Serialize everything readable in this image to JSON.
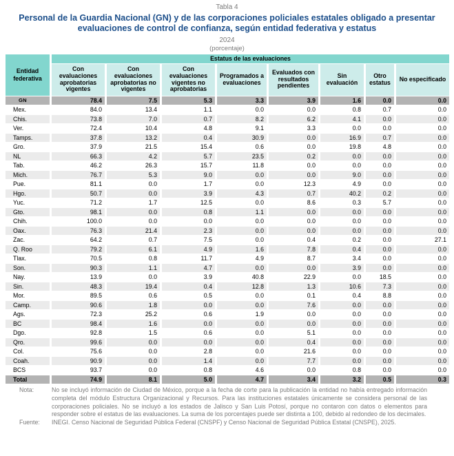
{
  "title": {
    "table_label": "Tabla 4",
    "main": "Personal de la Guardia Nacional (GN) y de las corporaciones policiales estatales obligado a presentar evaluaciones de control de confianza, según entidad federativa y estatus",
    "year": "2024",
    "unit": "(porcentaje)"
  },
  "colors": {
    "accent_teal": "#82d6ce",
    "subheader_light": "#cdecea",
    "emphasis_row_gray": "#b3b3b3",
    "stripe_gray": "#ebebeb",
    "title_blue": "#1b4e8a",
    "note_gray": "#7a7a7a"
  },
  "chart_data": {
    "type": "table",
    "title": "Personal de la Guardia Nacional (GN) y de las corporaciones policiales estatales obligado a presentar evaluaciones de control de confianza, según entidad federativa y estatus, 2024 (porcentaje)",
    "row_header": "Entidad federativa",
    "col_group_header": "Estatus de las evaluaciones",
    "columns": [
      "Con evaluaciones aprobatorias vigentes",
      "Con evaluaciones aprobatorias no vigentes",
      "Con evaluaciones vigentes no aprobatorias",
      "Programados a evaluaciones",
      "Evaluados con resultados pendientes",
      "Sin evaluación",
      "Otro estatus",
      "No especificado"
    ],
    "rows": [
      {
        "label": "GN",
        "emphasis": true,
        "values": [
          "78.4",
          "7.5",
          "5.3",
          "3.3",
          "3.9",
          "1.6",
          "0.0",
          "0.0"
        ]
      },
      {
        "label": "Mex.",
        "emphasis": false,
        "values": [
          "84.0",
          "13.4",
          "1.1",
          "0.0",
          "0.0",
          "0.8",
          "0.7",
          "0.0"
        ]
      },
      {
        "label": "Chis.",
        "emphasis": false,
        "values": [
          "73.8",
          "7.0",
          "0.7",
          "8.2",
          "6.2",
          "4.1",
          "0.0",
          "0.0"
        ]
      },
      {
        "label": "Ver.",
        "emphasis": false,
        "values": [
          "72.4",
          "10.4",
          "4.8",
          "9.1",
          "3.3",
          "0.0",
          "0.0",
          "0.0"
        ]
      },
      {
        "label": "Tamps.",
        "emphasis": false,
        "values": [
          "37.8",
          "13.2",
          "0.4",
          "30.9",
          "0.0",
          "16.9",
          "0.7",
          "0.0"
        ]
      },
      {
        "label": "Gro.",
        "emphasis": false,
        "values": [
          "37.9",
          "21.5",
          "15.4",
          "0.6",
          "0.0",
          "19.8",
          "4.8",
          "0.0"
        ]
      },
      {
        "label": "NL",
        "emphasis": false,
        "values": [
          "66.3",
          "4.2",
          "5.7",
          "23.5",
          "0.2",
          "0.0",
          "0.0",
          "0.0"
        ]
      },
      {
        "label": "Tab.",
        "emphasis": false,
        "values": [
          "46.2",
          "26.3",
          "15.7",
          "11.8",
          "0.0",
          "0.0",
          "0.0",
          "0.0"
        ]
      },
      {
        "label": "Mich.",
        "emphasis": false,
        "values": [
          "76.7",
          "5.3",
          "9.0",
          "0.0",
          "0.0",
          "9.0",
          "0.0",
          "0.0"
        ]
      },
      {
        "label": "Pue.",
        "emphasis": false,
        "values": [
          "81.1",
          "0.0",
          "1.7",
          "0.0",
          "12.3",
          "4.9",
          "0.0",
          "0.0"
        ]
      },
      {
        "label": "Hgo.",
        "emphasis": false,
        "values": [
          "50.7",
          "0.0",
          "3.9",
          "4.3",
          "0.7",
          "40.2",
          "0.2",
          "0.0"
        ]
      },
      {
        "label": "Yuc.",
        "emphasis": false,
        "values": [
          "71.2",
          "1.7",
          "12.5",
          "0.0",
          "8.6",
          "0.3",
          "5.7",
          "0.0"
        ]
      },
      {
        "label": "Gto.",
        "emphasis": false,
        "values": [
          "98.1",
          "0.0",
          "0.8",
          "1.1",
          "0.0",
          "0.0",
          "0.0",
          "0.0"
        ]
      },
      {
        "label": "Chih.",
        "emphasis": false,
        "values": [
          "100.0",
          "0.0",
          "0.0",
          "0.0",
          "0.0",
          "0.0",
          "0.0",
          "0.0"
        ]
      },
      {
        "label": "Oax.",
        "emphasis": false,
        "values": [
          "76.3",
          "21.4",
          "2.3",
          "0.0",
          "0.0",
          "0.0",
          "0.0",
          "0.0"
        ]
      },
      {
        "label": "Zac.",
        "emphasis": false,
        "values": [
          "64.2",
          "0.7",
          "7.5",
          "0.0",
          "0.4",
          "0.2",
          "0.0",
          "27.1"
        ]
      },
      {
        "label": "Q. Roo",
        "emphasis": false,
        "values": [
          "79.2",
          "6.1",
          "4.9",
          "1.6",
          "7.8",
          "0.4",
          "0.0",
          "0.0"
        ]
      },
      {
        "label": "Tlax.",
        "emphasis": false,
        "values": [
          "70.5",
          "0.8",
          "11.7",
          "4.9",
          "8.7",
          "3.4",
          "0.0",
          "0.0"
        ]
      },
      {
        "label": "Son.",
        "emphasis": false,
        "values": [
          "90.3",
          "1.1",
          "4.7",
          "0.0",
          "0.0",
          "3.9",
          "0.0",
          "0.0"
        ]
      },
      {
        "label": "Nay.",
        "emphasis": false,
        "values": [
          "13.9",
          "0.0",
          "3.9",
          "40.8",
          "22.9",
          "0.0",
          "18.5",
          "0.0"
        ]
      },
      {
        "label": "Sin.",
        "emphasis": false,
        "values": [
          "48.3",
          "19.4",
          "0.4",
          "12.8",
          "1.3",
          "10.6",
          "7.3",
          "0.0"
        ]
      },
      {
        "label": "Mor.",
        "emphasis": false,
        "values": [
          "89.5",
          "0.6",
          "0.5",
          "0.0",
          "0.1",
          "0.4",
          "8.8",
          "0.0"
        ]
      },
      {
        "label": "Camp.",
        "emphasis": false,
        "values": [
          "90.6",
          "1.8",
          "0.0",
          "0.0",
          "7.6",
          "0.0",
          "0.0",
          "0.0"
        ]
      },
      {
        "label": "Ags.",
        "emphasis": false,
        "values": [
          "72.3",
          "25.2",
          "0.6",
          "1.9",
          "0.0",
          "0.0",
          "0.0",
          "0.0"
        ]
      },
      {
        "label": "BC",
        "emphasis": false,
        "values": [
          "98.4",
          "1.6",
          "0.0",
          "0.0",
          "0.0",
          "0.0",
          "0.0",
          "0.0"
        ]
      },
      {
        "label": "Dgo.",
        "emphasis": false,
        "values": [
          "92.8",
          "1.5",
          "0.6",
          "0.0",
          "5.1",
          "0.0",
          "0.0",
          "0.0"
        ]
      },
      {
        "label": "Qro.",
        "emphasis": false,
        "values": [
          "99.6",
          "0.0",
          "0.0",
          "0.0",
          "0.4",
          "0.0",
          "0.0",
          "0.0"
        ]
      },
      {
        "label": "Col.",
        "emphasis": false,
        "values": [
          "75.6",
          "0.0",
          "2.8",
          "0.0",
          "21.6",
          "0.0",
          "0.0",
          "0.0"
        ]
      },
      {
        "label": "Coah.",
        "emphasis": false,
        "values": [
          "90.9",
          "0.0",
          "1.4",
          "0.0",
          "7.7",
          "0.0",
          "0.0",
          "0.0"
        ]
      },
      {
        "label": "BCS",
        "emphasis": false,
        "values": [
          "93.7",
          "0.0",
          "0.8",
          "4.6",
          "0.0",
          "0.8",
          "0.0",
          "0.0"
        ]
      },
      {
        "label": "Total",
        "emphasis": true,
        "values": [
          "74.9",
          "8.1",
          "5.0",
          "4.7",
          "3.4",
          "3.2",
          "0.5",
          "0.3"
        ]
      }
    ]
  },
  "footer": {
    "note_label": "Nota:",
    "note_text": "No se incluyó información de Ciudad de México, porque a la fecha de corte para la publicación la entidad no había entregado información completa del módulo Estructura Organizacional y Recursos. Para las instituciones estatales únicamente se considera personal de las corporaciones policiales. No se incluyó a los estados de Jalisco y San Luis Potosí, porque no contaron con datos o elementos para responder sobre el estatus de las evaluaciones. La suma de los porcentajes puede ser distinta a 100, debido al redondeo de los decimales.",
    "source_label": "Fuente:",
    "source_text": "INEGI. Censo Nacional de Seguridad Pública Federal (CNSPF) y Censo Nacional de Seguridad Pública Estatal (CNSPE), 2025."
  }
}
